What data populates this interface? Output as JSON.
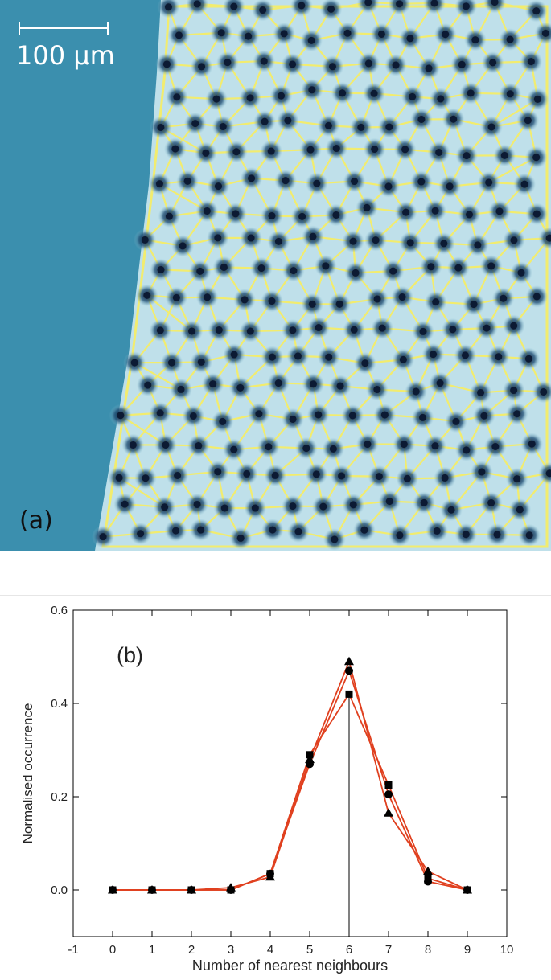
{
  "panel_a": {
    "scale_bar_label": "100 μm",
    "panel_label": "(a)",
    "colors": {
      "background": "#3b8fae",
      "film": "#bfe0ea",
      "network": "#f2ec6e",
      "pore": "#0c1a33"
    }
  },
  "chart_data": {
    "type": "line",
    "panel_label": "(b)",
    "xlabel": "Number of nearest neighbours",
    "ylabel": "Normalised occurrence",
    "xlim": [
      -1,
      10
    ],
    "ylim": [
      -0.1,
      0.6
    ],
    "x_ticks": [
      "-1",
      "0",
      "1",
      "2",
      "3",
      "4",
      "5",
      "6",
      "7",
      "8",
      "9",
      "10"
    ],
    "y_ticks": [
      "0.0",
      "0.2",
      "0.4",
      "0.6"
    ],
    "grid": false,
    "line_color": "#e0401f",
    "marker_color": "#000000",
    "vertical_reference_line_x": 6,
    "x": [
      0,
      1,
      2,
      3,
      4,
      5,
      6,
      7,
      8,
      9
    ],
    "series": [
      {
        "marker": "square",
        "values": [
          0.0,
          0.0,
          0.0,
          0.0,
          0.035,
          0.29,
          0.42,
          0.225,
          0.025,
          0.0
        ]
      },
      {
        "marker": "circle",
        "values": [
          0.0,
          0.0,
          0.0,
          0.0,
          0.035,
          0.27,
          0.47,
          0.205,
          0.018,
          0.0
        ]
      },
      {
        "marker": "triangle",
        "values": [
          0.0,
          0.0,
          0.0,
          0.005,
          0.028,
          0.28,
          0.49,
          0.165,
          0.04,
          0.0
        ]
      }
    ]
  }
}
